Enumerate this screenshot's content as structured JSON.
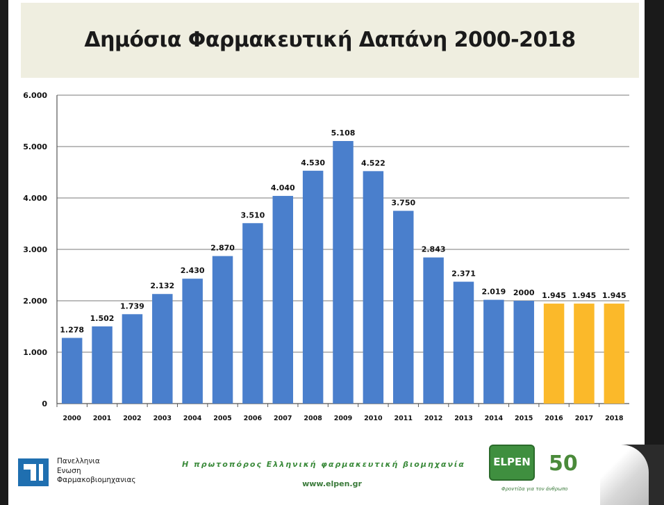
{
  "slide": {
    "title": "Δημόσια Φαρμακευτική Δαπάνη 2000-2018"
  },
  "chart_data": {
    "type": "bar",
    "title": "Δημόσια Φαρμακευτική Δαπάνη 2000-2018",
    "xlabel": "",
    "ylabel": "",
    "ylim": [
      0,
      6000
    ],
    "grid": true,
    "y_ticks": [
      0,
      1000,
      2000,
      3000,
      4000,
      5000,
      6000
    ],
    "y_tick_labels": [
      "0",
      "1.000",
      "2.000",
      "3.000",
      "4.000",
      "5.000",
      "6.000"
    ],
    "categories": [
      "2000",
      "2001",
      "2002",
      "2003",
      "2004",
      "2005",
      "2006",
      "2007",
      "2008",
      "2009",
      "2010",
      "2011",
      "2012",
      "2013",
      "2014",
      "2015",
      "2016",
      "2017",
      "2018"
    ],
    "values": [
      1278,
      1502,
      1739,
      2132,
      2430,
      2870,
      3510,
      4040,
      4530,
      5108,
      4522,
      3750,
      2843,
      2371,
      2019,
      2000,
      1945,
      1945,
      1945
    ],
    "data_labels": [
      "1.278",
      "1.502",
      "1.739",
      "2.132",
      "2.430",
      "2.870",
      "3.510",
      "4.040",
      "4.530",
      "5.108",
      "4.522",
      "3.750",
      "2.843",
      "2.371",
      "2.019",
      "2000",
      "1.945",
      "1.945",
      "1.945"
    ],
    "bar_colors": [
      "#4a7fcc",
      "#4a7fcc",
      "#4a7fcc",
      "#4a7fcc",
      "#4a7fcc",
      "#4a7fcc",
      "#4a7fcc",
      "#4a7fcc",
      "#4a7fcc",
      "#4a7fcc",
      "#4a7fcc",
      "#4a7fcc",
      "#4a7fcc",
      "#4a7fcc",
      "#4a7fcc",
      "#4a7fcc",
      "#fbb92a",
      "#fbb92a",
      "#fbb92a"
    ]
  },
  "footer": {
    "org_line1": "Πανελληνια",
    "org_line2": "Ενωση",
    "org_line3": "Φαρμακοβιομηχανιας",
    "tagline": "Η πρωτοπόρος Ελληνική φαρμακευτική βιομηχανία",
    "website": "www.elpen.gr",
    "elpen_name": "ELPEN",
    "elpen_anniversary": "50",
    "elpen_slogan": "Φροντίδα για τον άνθρωπο"
  }
}
